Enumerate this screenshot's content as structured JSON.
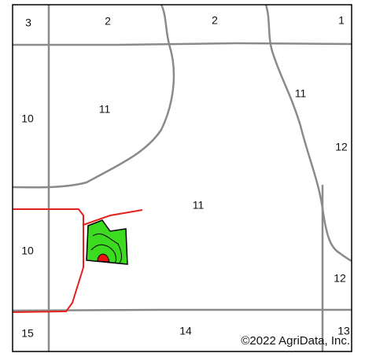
{
  "map": {
    "labels": [
      "3",
      "2",
      "2",
      "1",
      "10",
      "11",
      "11",
      "12",
      "11",
      "10",
      "12",
      "15",
      "14",
      "13"
    ],
    "copyright": "©2022 AgriData, Inc."
  }
}
